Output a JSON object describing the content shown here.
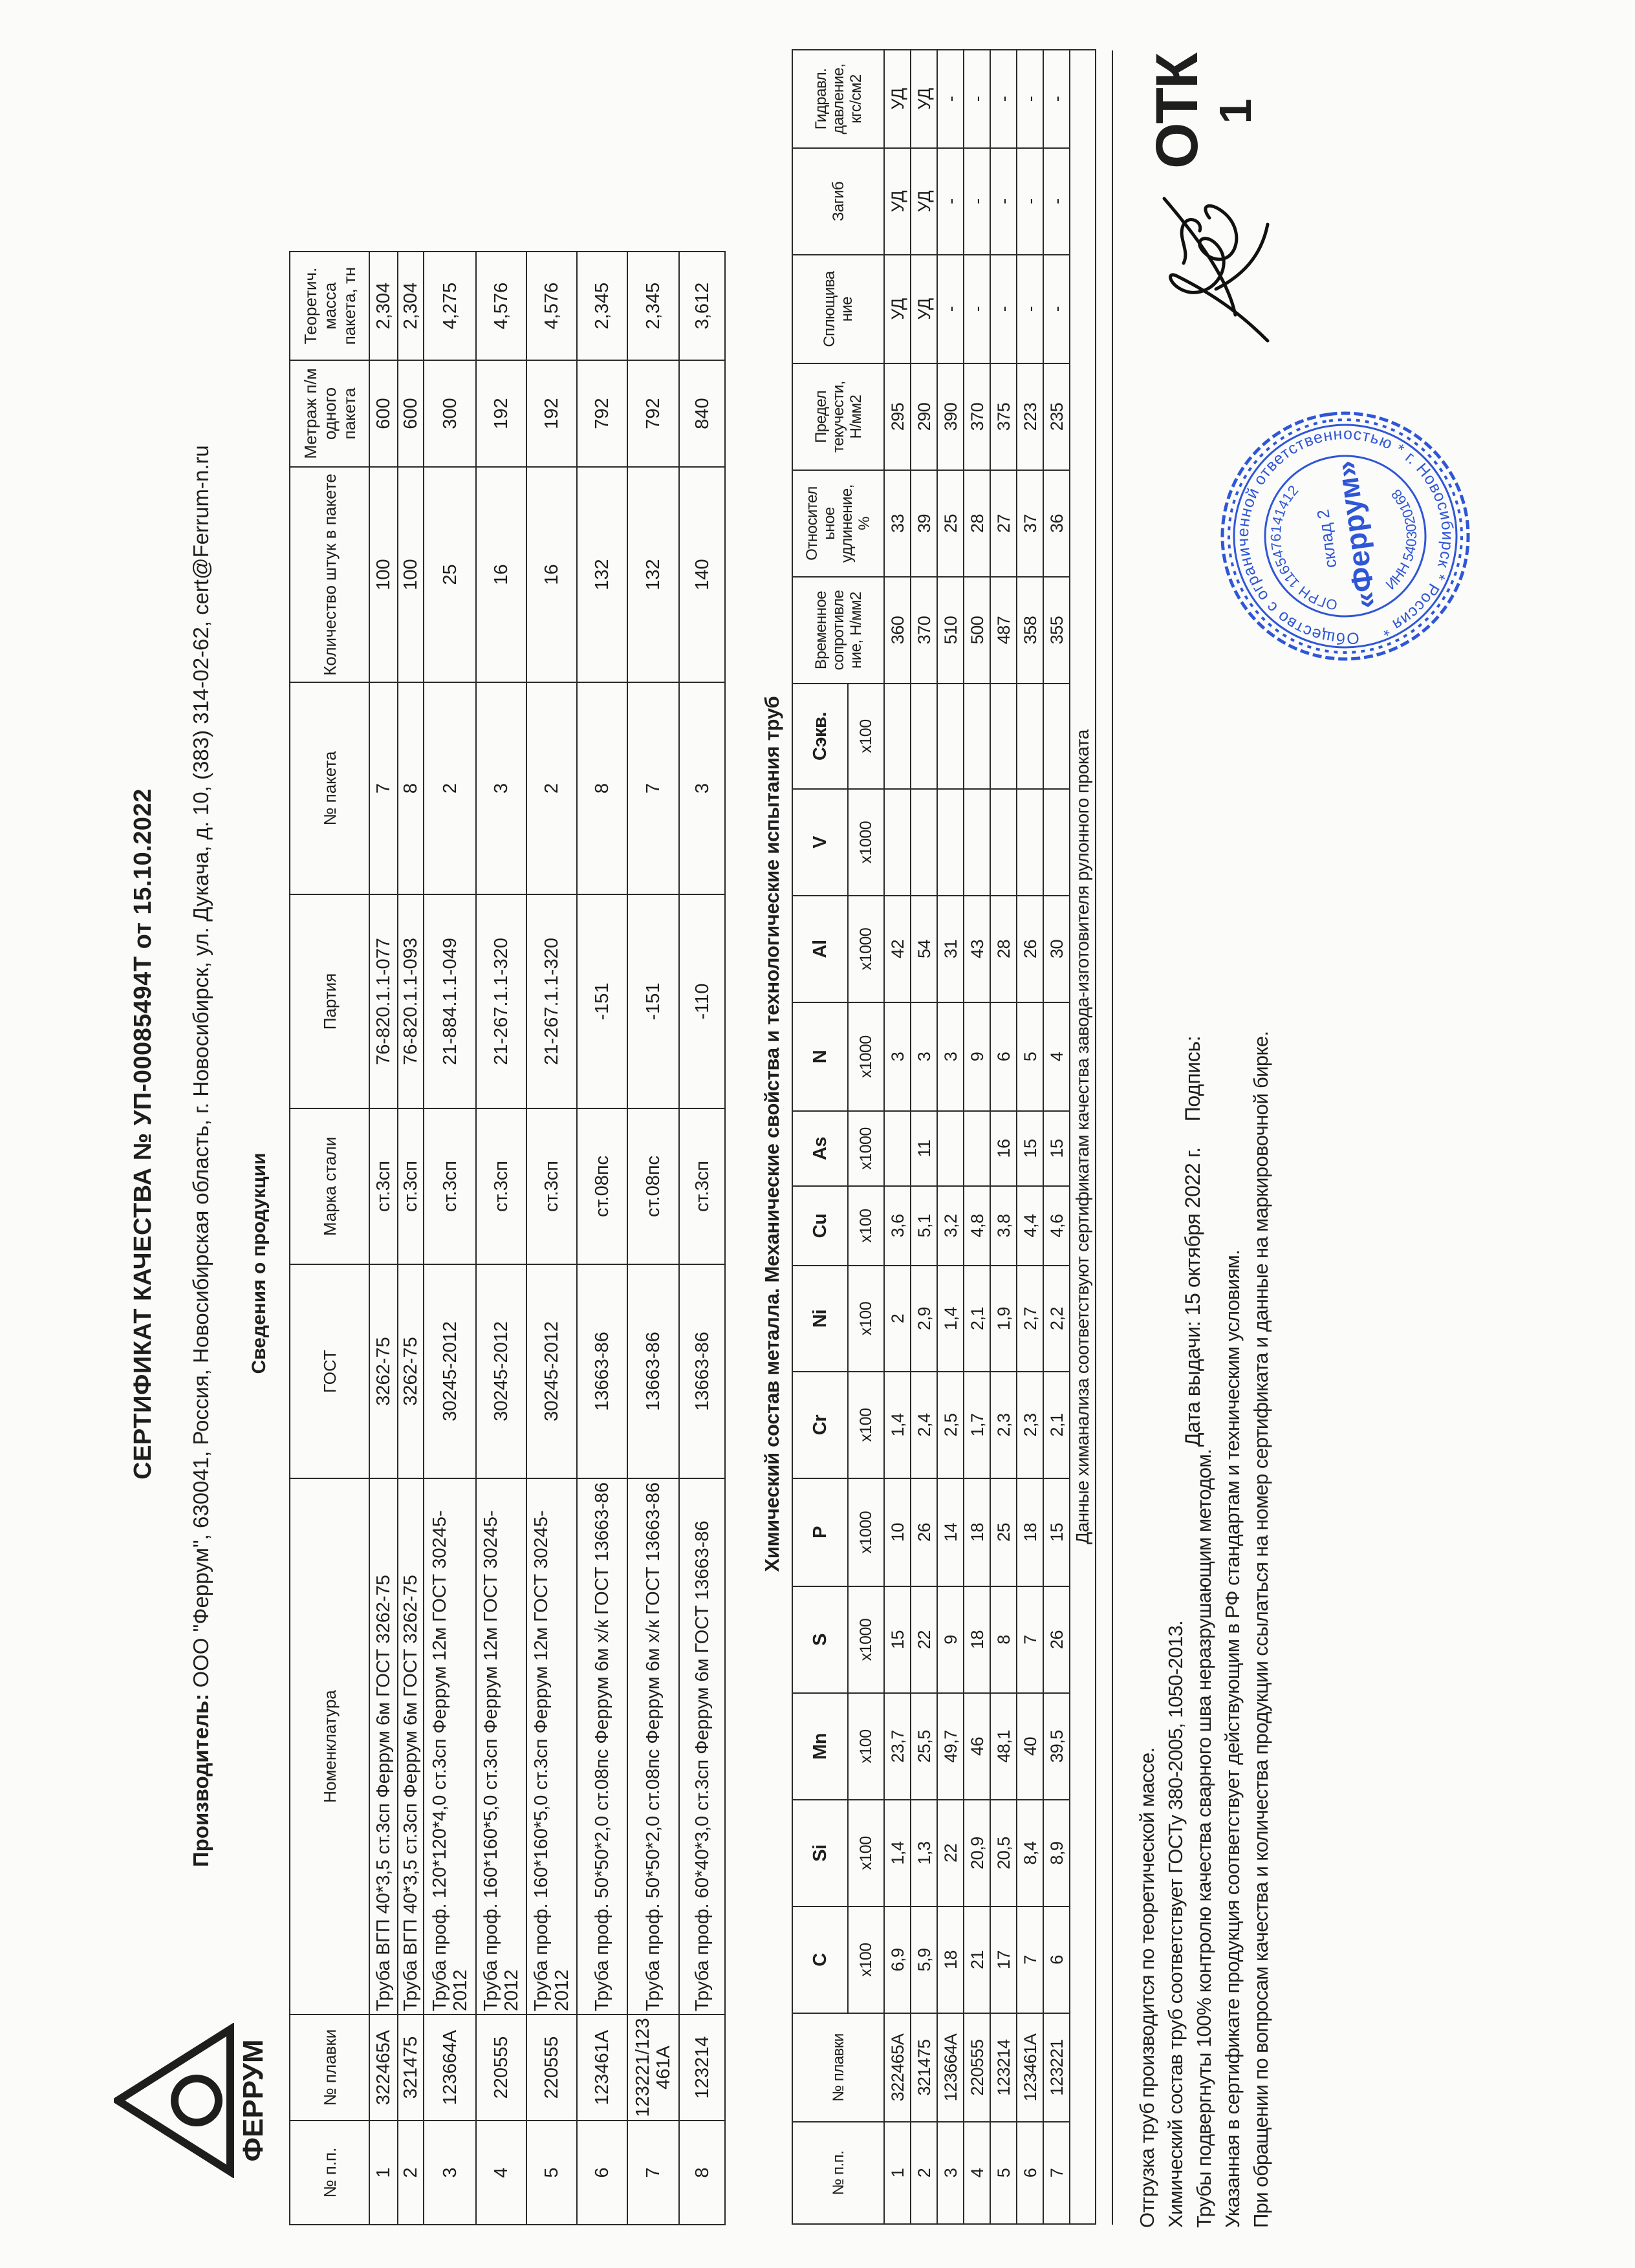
{
  "header": {
    "title": "СЕРТИФИКАТ КАЧЕСТВА № УП-00085494Т от 15.10.2022",
    "producer_label": "Производитель:",
    "producer_text": " ООО \"Феррум\", 630041, Россия, Новосибирская область, г. Новосибирск, ул. Дукача, д. 10, (383) 314-02-62, cert@Ferrum-n.ru",
    "logo_text": "ФЕРРУМ"
  },
  "products": {
    "title": "Сведения о продукции",
    "columns": [
      "№ п.п.",
      "№ плавки",
      "Номенклатура",
      "ГОСТ",
      "Марка стали",
      "Партия",
      "№ пакета",
      "Количество штук в пакете",
      "Метраж п/м одного пакета",
      "Теоретич. масса пакета, тн"
    ],
    "rows": [
      [
        "1",
        "322465A",
        "Труба ВГП 40*3,5 ст.3сп Феррум 6м ГОСТ 3262-75",
        "3262-75",
        "ст.3сп",
        "76-820.1.1-077",
        "7",
        "100",
        "600",
        "2,304"
      ],
      [
        "2",
        "321475",
        "Труба ВГП 40*3,5 ст.3сп Феррум 6м ГОСТ 3262-75",
        "3262-75",
        "ст.3сп",
        "76-820.1.1-093",
        "8",
        "100",
        "600",
        "2,304"
      ],
      [
        "3",
        "123664A",
        "Труба проф. 120*120*4,0 ст.3сп Феррум 12м ГОСТ 30245-2012",
        "30245-2012",
        "ст.3сп",
        "21-884.1.1-049",
        "2",
        "25",
        "300",
        "4,275"
      ],
      [
        "4",
        "220555",
        "Труба проф. 160*160*5,0 ст.3сп Феррум 12м ГОСТ 30245-2012",
        "30245-2012",
        "ст.3сп",
        "21-267.1.1-320",
        "3",
        "16",
        "192",
        "4,576"
      ],
      [
        "5",
        "220555",
        "Труба проф. 160*160*5,0 ст.3сп Феррум 12м ГОСТ 30245-2012",
        "30245-2012",
        "ст.3сп",
        "21-267.1.1-320",
        "2",
        "16",
        "192",
        "4,576"
      ],
      [
        "6",
        "123461A",
        "Труба проф. 50*50*2,0 ст.08пс Феррум 6м х/к ГОСТ 13663-86",
        "13663-86",
        "ст.08пс",
        "-151",
        "8",
        "132",
        "792",
        "2,345"
      ],
      [
        "7",
        "123221/123461A",
        "Труба проф. 50*50*2,0 ст.08пс Феррум 6м х/к ГОСТ 13663-86",
        "13663-86",
        "ст.08пс",
        "-151",
        "7",
        "132",
        "792",
        "2,345"
      ],
      [
        "8",
        "123214",
        "Труба проф. 60*40*3,0 ст.3сп Феррум 6м ГОСТ 13663-86",
        "13663-86",
        "ст.3сп",
        "-110",
        "3",
        "140",
        "840",
        "3,612"
      ]
    ]
  },
  "chemistry": {
    "title": "Химический состав металла. Механические свойства  и технологические испытания труб",
    "columns": [
      {
        "name": "№ п.п.",
        "unit": ""
      },
      {
        "name": "№ плавки",
        "unit": ""
      },
      {
        "name": "C",
        "unit": "x100"
      },
      {
        "name": "Si",
        "unit": "x100"
      },
      {
        "name": "Mn",
        "unit": "x100"
      },
      {
        "name": "S",
        "unit": "x1000"
      },
      {
        "name": "P",
        "unit": "x1000"
      },
      {
        "name": "Cr",
        "unit": "x100"
      },
      {
        "name": "Ni",
        "unit": "x100"
      },
      {
        "name": "Cu",
        "unit": "x100"
      },
      {
        "name": "As",
        "unit": "x1000"
      },
      {
        "name": "N",
        "unit": "x1000"
      },
      {
        "name": "Al",
        "unit": "x1000"
      },
      {
        "name": "V",
        "unit": "x1000"
      },
      {
        "name": "Сэкв.",
        "unit": "x100"
      },
      {
        "name": "Временное\nсопротивле\nние, Н/мм2",
        "unit": ""
      },
      {
        "name": "Относител\nьное\nудлинение,\n%",
        "unit": ""
      },
      {
        "name": "Предел\nтекучести,\nН/мм2",
        "unit": ""
      },
      {
        "name": "Сплющива\nние",
        "unit": ""
      },
      {
        "name": "Загиб",
        "unit": ""
      },
      {
        "name": "Гидравл.\nдавление,\nкгс/см2",
        "unit": ""
      }
    ],
    "rows": [
      [
        "1",
        "322465A",
        "6,9",
        "1,4",
        "23,7",
        "15",
        "10",
        "1,4",
        "2",
        "3,6",
        "",
        "3",
        "42",
        "",
        "",
        "360",
        "33",
        "295",
        "УД",
        "УД",
        "УД"
      ],
      [
        "2",
        "321475",
        "5,9",
        "1,3",
        "25,5",
        "22",
        "26",
        "2,4",
        "2,9",
        "5,1",
        "11",
        "3",
        "54",
        "",
        "",
        "370",
        "39",
        "290",
        "УД",
        "УД",
        "УД"
      ],
      [
        "3",
        "123664A",
        "18",
        "22",
        "49,7",
        "9",
        "14",
        "2,5",
        "1,4",
        "3,2",
        "",
        "3",
        "31",
        "",
        "",
        "510",
        "25",
        "390",
        "-",
        "-",
        "-"
      ],
      [
        "4",
        "220555",
        "21",
        "20,9",
        "46",
        "18",
        "18",
        "1,7",
        "2,1",
        "4,8",
        "",
        "9",
        "43",
        "",
        "",
        "500",
        "28",
        "370",
        "-",
        "-",
        "-"
      ],
      [
        "5",
        "123214",
        "17",
        "20,5",
        "48,1",
        "8",
        "25",
        "2,3",
        "1,9",
        "3,8",
        "16",
        "6",
        "28",
        "",
        "",
        "487",
        "27",
        "375",
        "-",
        "-",
        "-"
      ],
      [
        "6",
        "123461A",
        "7",
        "8,4",
        "40",
        "7",
        "18",
        "2,3",
        "2,7",
        "4,4",
        "15",
        "5",
        "26",
        "",
        "",
        "358",
        "37",
        "223",
        "-",
        "-",
        "-"
      ],
      [
        "7",
        "123221",
        "6",
        "8,9",
        "39,5",
        "26",
        "15",
        "2,1",
        "2,2",
        "4,6",
        "15",
        "4",
        "30",
        "",
        "",
        "355",
        "36",
        "235",
        "-",
        "-",
        "-"
      ]
    ],
    "footnote": "Данные химанализа соответствуют сертификатам качества завода-изготовителя рулонного проката"
  },
  "notes": [
    "Отгрузка труб производится по теоретической массе.",
    "Химический состав труб соответствует ГОСТу 380-2005, 1050-2013.",
    "Трубы подвергнуты 100% контролю качества сварного шва неразрушающим методом.",
    "Указанная в сертификате продукция соответствует действующим в РФ стандартам и техническим условиям.",
    "При обращении по вопросам качества и количества продукции ссылаться на номер сертификата и данные на маркировочной бирке."
  ],
  "issue": {
    "date_label": "Дата выдачи: 15 октября 2022 г.",
    "signature_label": "Подпись:"
  },
  "stamp": {
    "outer_text": "Общество с ограниченной ответственностью * г. Новосибирск * Россия *",
    "ogrn": "ОГРН 1165476141412",
    "inn": "ИНН 5403020168",
    "sub": "склад 2",
    "name": "«Феррум»"
  },
  "otk_stamp": {
    "text": "ОТК",
    "number": "1"
  },
  "colors": {
    "ink": "#1e1e1e",
    "stamp_blue": "#2f56d6"
  }
}
